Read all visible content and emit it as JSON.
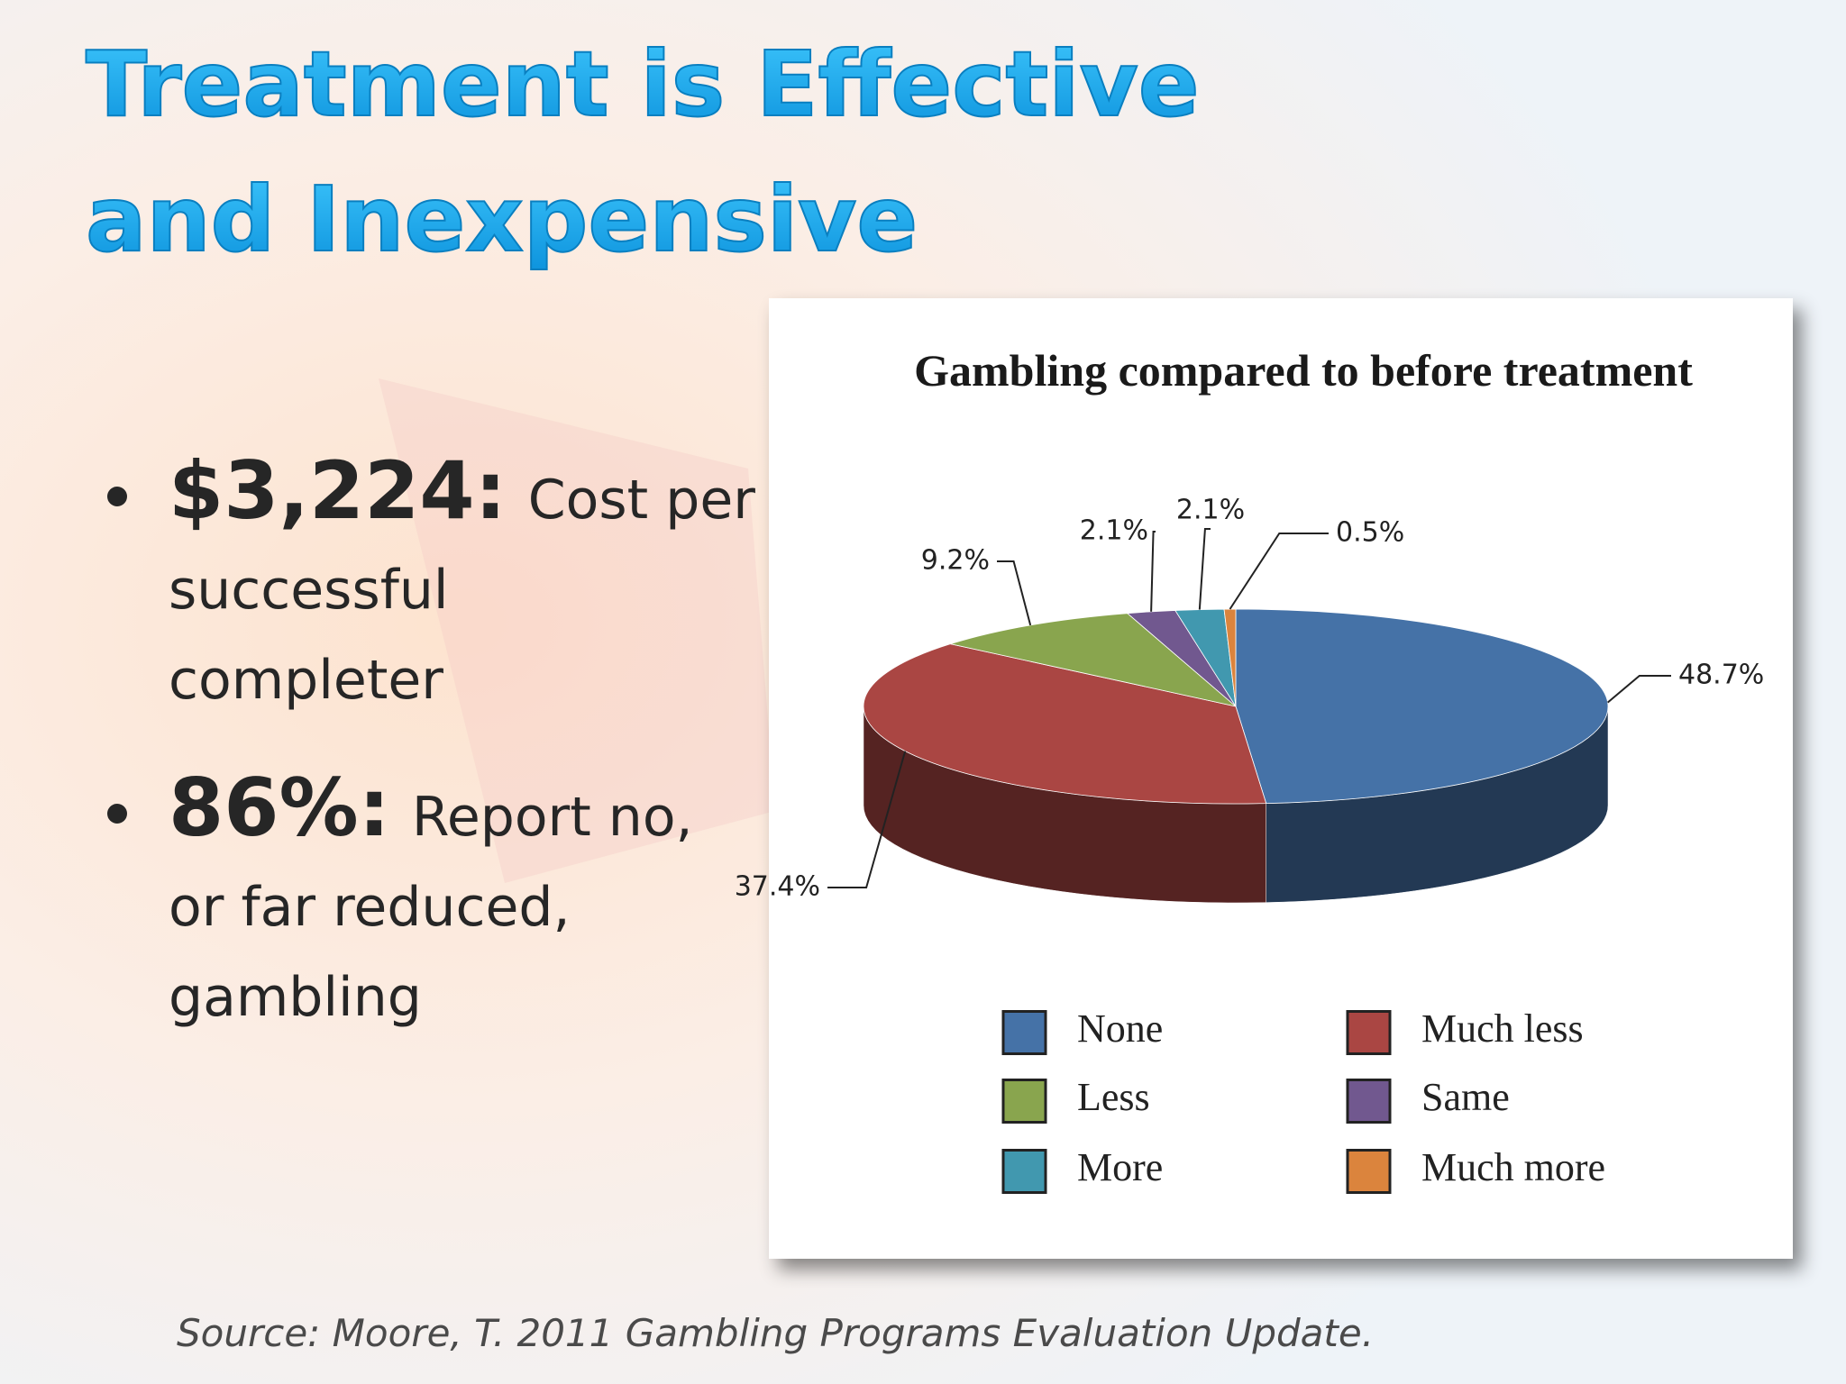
{
  "title_lines": [
    "Treatment is Effective",
    "and Inexpensive"
  ],
  "bullets": [
    {
      "lead": "$3,224:",
      "lines": [
        "Cost per",
        "successful",
        "completer"
      ]
    },
    {
      "lead": "86%:",
      "lines": [
        "Report no,",
        "or far reduced,",
        "gambling"
      ]
    }
  ],
  "source": "Source: Moore, T.  2011 Gambling Programs Evaluation Update.",
  "chart_data": {
    "type": "pie",
    "title": "Gambling compared to before treatment",
    "categories": [
      "None",
      "Much less",
      "Less",
      "Same",
      "More",
      "Much more"
    ],
    "values": [
      48.7,
      37.4,
      9.2,
      2.1,
      2.1,
      0.5
    ],
    "value_labels": [
      "48.7%",
      "37.4%",
      "9.2%",
      "2.1%",
      "2.1%",
      "0.5%"
    ],
    "colors": [
      "#4572a7",
      "#aa4643",
      "#89a54e",
      "#71588f",
      "#4198af",
      "#db843d"
    ],
    "legend": true
  }
}
